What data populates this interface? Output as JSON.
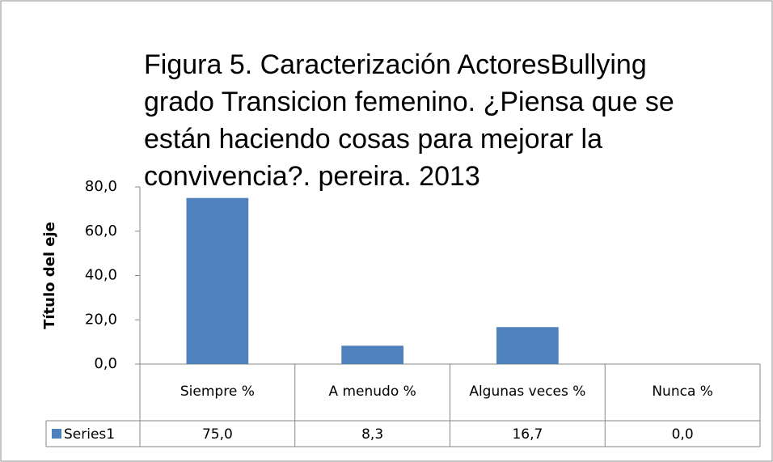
{
  "chart_data": {
    "type": "bar",
    "title": [
      "Figura 5. Caracterización ActoresBullying",
      "grado Transicion femenino.  ¿Piensa que se",
      "están haciendo cosas para mejorar la",
      "convivencia?. pereira. 2013"
    ],
    "y_axis_label": "Título del eje",
    "categories": [
      "Siempre %",
      "A menudo %",
      "Algunas veces %",
      "Nunca %"
    ],
    "series": [
      {
        "name": "Series1",
        "color": "#4f81bd",
        "values": [
          75,
          8.3,
          16.7,
          0
        ],
        "value_labels": [
          "75,0",
          "8,3",
          "16,7",
          "0,0"
        ]
      }
    ],
    "ylim": [
      0,
      80
    ],
    "yticks": [
      {
        "value": 0,
        "label": "0,0"
      },
      {
        "value": 20,
        "label": "20,0"
      },
      {
        "value": 40,
        "label": "40,0"
      },
      {
        "value": 60,
        "label": "60,0"
      },
      {
        "value": 80,
        "label": "80,0"
      }
    ],
    "grid": false
  }
}
